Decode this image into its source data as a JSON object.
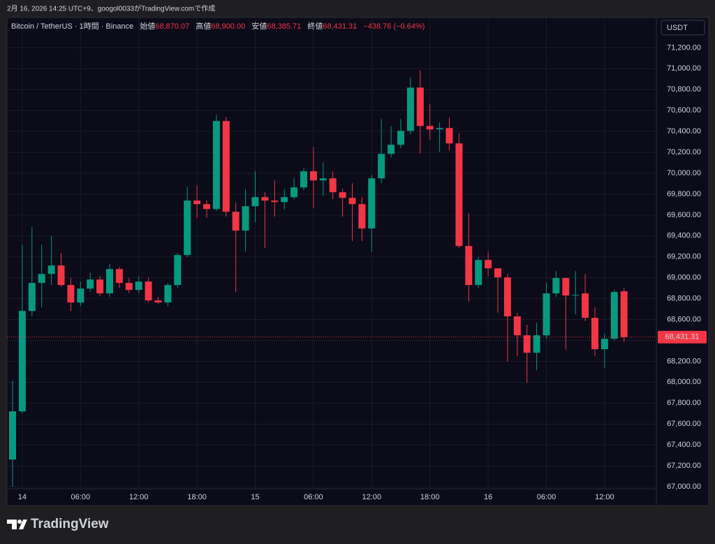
{
  "caption": "2月 16, 2026 14:25 UTC+9、googol0033がTradingView.comで作成",
  "header": {
    "symbol": "Bitcoin / TetherUS · 1時間 · Binance",
    "open_label": "始値",
    "open": "68,870.07",
    "high_label": "高値",
    "high": "68,900.00",
    "low_label": "安値",
    "low": "68,385.71",
    "close_label": "終値",
    "close": "68,431.31",
    "change": "−438.76 (−0.64%)"
  },
  "currency": "USDT",
  "brand": "TradingView",
  "chart_data": {
    "type": "candlestick",
    "categories": [
      null,
      "14",
      null,
      null,
      null,
      null,
      null,
      "06:00",
      null,
      null,
      null,
      null,
      null,
      "12:00",
      null,
      null,
      null,
      null,
      null,
      "18:00",
      null,
      null,
      null,
      null,
      null,
      "15",
      null,
      null,
      null,
      null,
      null,
      "06:00",
      null,
      null,
      null,
      null,
      null,
      "12:00",
      null,
      null,
      null,
      null,
      null,
      "18:00",
      null,
      null,
      null,
      null,
      null,
      "16",
      null,
      null,
      null,
      null,
      null,
      "06:00",
      null,
      null,
      null,
      null,
      null,
      "12:00",
      null,
      null
    ],
    "open": [
      67260,
      67721,
      68682,
      68950,
      69036,
      69117,
      68930,
      68763,
      68896,
      68983,
      68850,
      69083,
      68950,
      68883,
      68963,
      68783,
      68763,
      68930,
      69217,
      69738,
      69704,
      69657,
      70499,
      69631,
      69451,
      69684,
      69771,
      69738,
      69724,
      69771,
      69864,
      70018,
      69931,
      69951,
      69818,
      69764,
      69704,
      69471,
      69951,
      70185,
      70272,
      70405,
      70819,
      70452,
      70419,
      70432,
      70285,
      69303,
      68930,
      69170,
      69090,
      69003,
      68630,
      68449,
      68282,
      68449,
      68850,
      68997,
      68830,
      68850,
      68616,
      68316,
      68416,
      68870.07
    ],
    "high": [
      68015,
      69317,
      69484,
      69317,
      69397,
      69237,
      68997,
      68963,
      69050,
      69016,
      69130,
      69103,
      68997,
      69010,
      69003,
      68816,
      68950,
      69237,
      69871,
      69884,
      69744,
      70559,
      70539,
      69718,
      69851,
      70018,
      69818,
      69931,
      69851,
      69951,
      70051,
      70251,
      70105,
      70018,
      69851,
      69904,
      69771,
      69985,
      70519,
      70452,
      70519,
      70919,
      70986,
      70666,
      70486,
      70532,
      70385,
      69617,
      69197,
      69250,
      69090,
      69036,
      68663,
      68549,
      68569,
      68950,
      69063,
      68997,
      69063,
      69036,
      68716,
      68463,
      68883,
      68900
    ],
    "low": [
      67000,
      67700,
      68630,
      68716,
      68930,
      68916,
      68682,
      68729,
      68863,
      68823,
      68816,
      68903,
      68850,
      68850,
      68763,
      68749,
      68729,
      68903,
      69197,
      69571,
      69571,
      69637,
      69584,
      68863,
      69250,
      69531,
      69283,
      69584,
      69651,
      69751,
      69838,
      69664,
      69784,
      69751,
      69584,
      69350,
      69350,
      69250,
      69904,
      70152,
      70238,
      70372,
      70185,
      70318,
      70205,
      70218,
      69283,
      68769,
      68903,
      69016,
      68663,
      68195,
      68249,
      67995,
      68115,
      68416,
      68816,
      68315,
      68649,
      68583,
      68249,
      68135,
      68402,
      68385.71
    ],
    "close": [
      67721,
      68682,
      68950,
      69036,
      69117,
      68930,
      68763,
      68896,
      68983,
      68850,
      69083,
      68950,
      68883,
      68963,
      68783,
      68763,
      68930,
      69217,
      69738,
      69704,
      69657,
      70499,
      69631,
      69451,
      69684,
      69771,
      69738,
      69724,
      69771,
      69864,
      70018,
      69931,
      69951,
      69818,
      69764,
      69704,
      69471,
      69951,
      70185,
      70272,
      70405,
      70819,
      70452,
      70419,
      70432,
      70285,
      69303,
      68930,
      69170,
      69090,
      69003,
      68630,
      68449,
      68282,
      68449,
      68850,
      68997,
      68830,
      68836,
      68616,
      68316,
      68416,
      68863,
      68431.31
    ],
    "up_color": "#089981",
    "down_color": "#f23645",
    "ylim": [
      66980,
      71490
    ],
    "yticks": [
      {
        "value": 67000,
        "label": "67,000.00"
      },
      {
        "value": 67200,
        "label": "67,200.00"
      },
      {
        "value": 67400,
        "label": "67,400.00"
      },
      {
        "value": 67600,
        "label": "67,600.00"
      },
      {
        "value": 67800,
        "label": "67,800.00"
      },
      {
        "value": 68000,
        "label": "68,000.00"
      },
      {
        "value": 68200,
        "label": "68,200.00"
      },
      {
        "value": 68400,
        "label": "68,400.00"
      },
      {
        "value": 68600,
        "label": "68,600.00"
      },
      {
        "value": 68800,
        "label": "68,800.00"
      },
      {
        "value": 69000,
        "label": "69,000.00"
      },
      {
        "value": 69200,
        "label": "69,200.00"
      },
      {
        "value": 69400,
        "label": "69,400.00"
      },
      {
        "value": 69600,
        "label": "69,600.00"
      },
      {
        "value": 69800,
        "label": "69,800.00"
      },
      {
        "value": 70000,
        "label": "70,000.00"
      },
      {
        "value": 70200,
        "label": "70,200.00"
      },
      {
        "value": 70400,
        "label": "70,400.00"
      },
      {
        "value": 70600,
        "label": "70,600.00"
      },
      {
        "value": 70800,
        "label": "70,800.00"
      },
      {
        "value": 71000,
        "label": "71,000.00"
      },
      {
        "value": 71200,
        "label": "71,200.00"
      }
    ],
    "last_price": {
      "value": 68431.31,
      "label": "68,431.31"
    },
    "grid": true
  }
}
